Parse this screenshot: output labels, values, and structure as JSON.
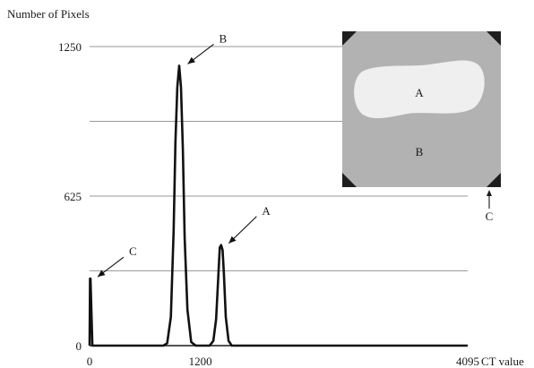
{
  "chart_data": {
    "type": "line",
    "title": "",
    "ylabel": "Number of Pixels",
    "xlabel": "CT value",
    "xlim": [
      0,
      4095
    ],
    "ylim": [
      0,
      1250
    ],
    "x_ticks": [
      0,
      1200,
      4095
    ],
    "y_ticks": [
      0,
      625,
      1250
    ],
    "x_tick_labels": [
      "0",
      "1200",
      "4095"
    ],
    "y_tick_labels": [
      "0",
      "625",
      "1250"
    ],
    "grid_y": [
      312.5,
      625,
      937.5,
      1250
    ],
    "series": [
      {
        "name": "",
        "x": [
          0,
          5,
          10,
          30,
          800,
          840,
          880,
          910,
          930,
          950,
          970,
          990,
          1010,
          1030,
          1060,
          1100,
          1150,
          1300,
          1340,
          1370,
          1395,
          1410,
          1425,
          1440,
          1455,
          1475,
          1505,
          1540,
          1600,
          4095
        ],
        "y": [
          0,
          280,
          280,
          0,
          0,
          10,
          120,
          480,
          850,
          1080,
          1170,
          1080,
          820,
          450,
          150,
          15,
          0,
          0,
          20,
          110,
          300,
          410,
          420,
          400,
          300,
          120,
          20,
          0,
          0,
          0
        ]
      }
    ],
    "peaks": [
      {
        "label": "A",
        "x": 1420,
        "y": 420
      },
      {
        "label": "B",
        "x": 975,
        "y": 1170
      },
      {
        "label": "C",
        "x": 0,
        "y": 280
      }
    ]
  },
  "inset": {
    "region_labels": [
      "A",
      "B"
    ],
    "corner_label": "C",
    "colors": {
      "background": "#b2b2b2",
      "region_a": "#efefef",
      "corner": "#1e1e1e"
    }
  }
}
